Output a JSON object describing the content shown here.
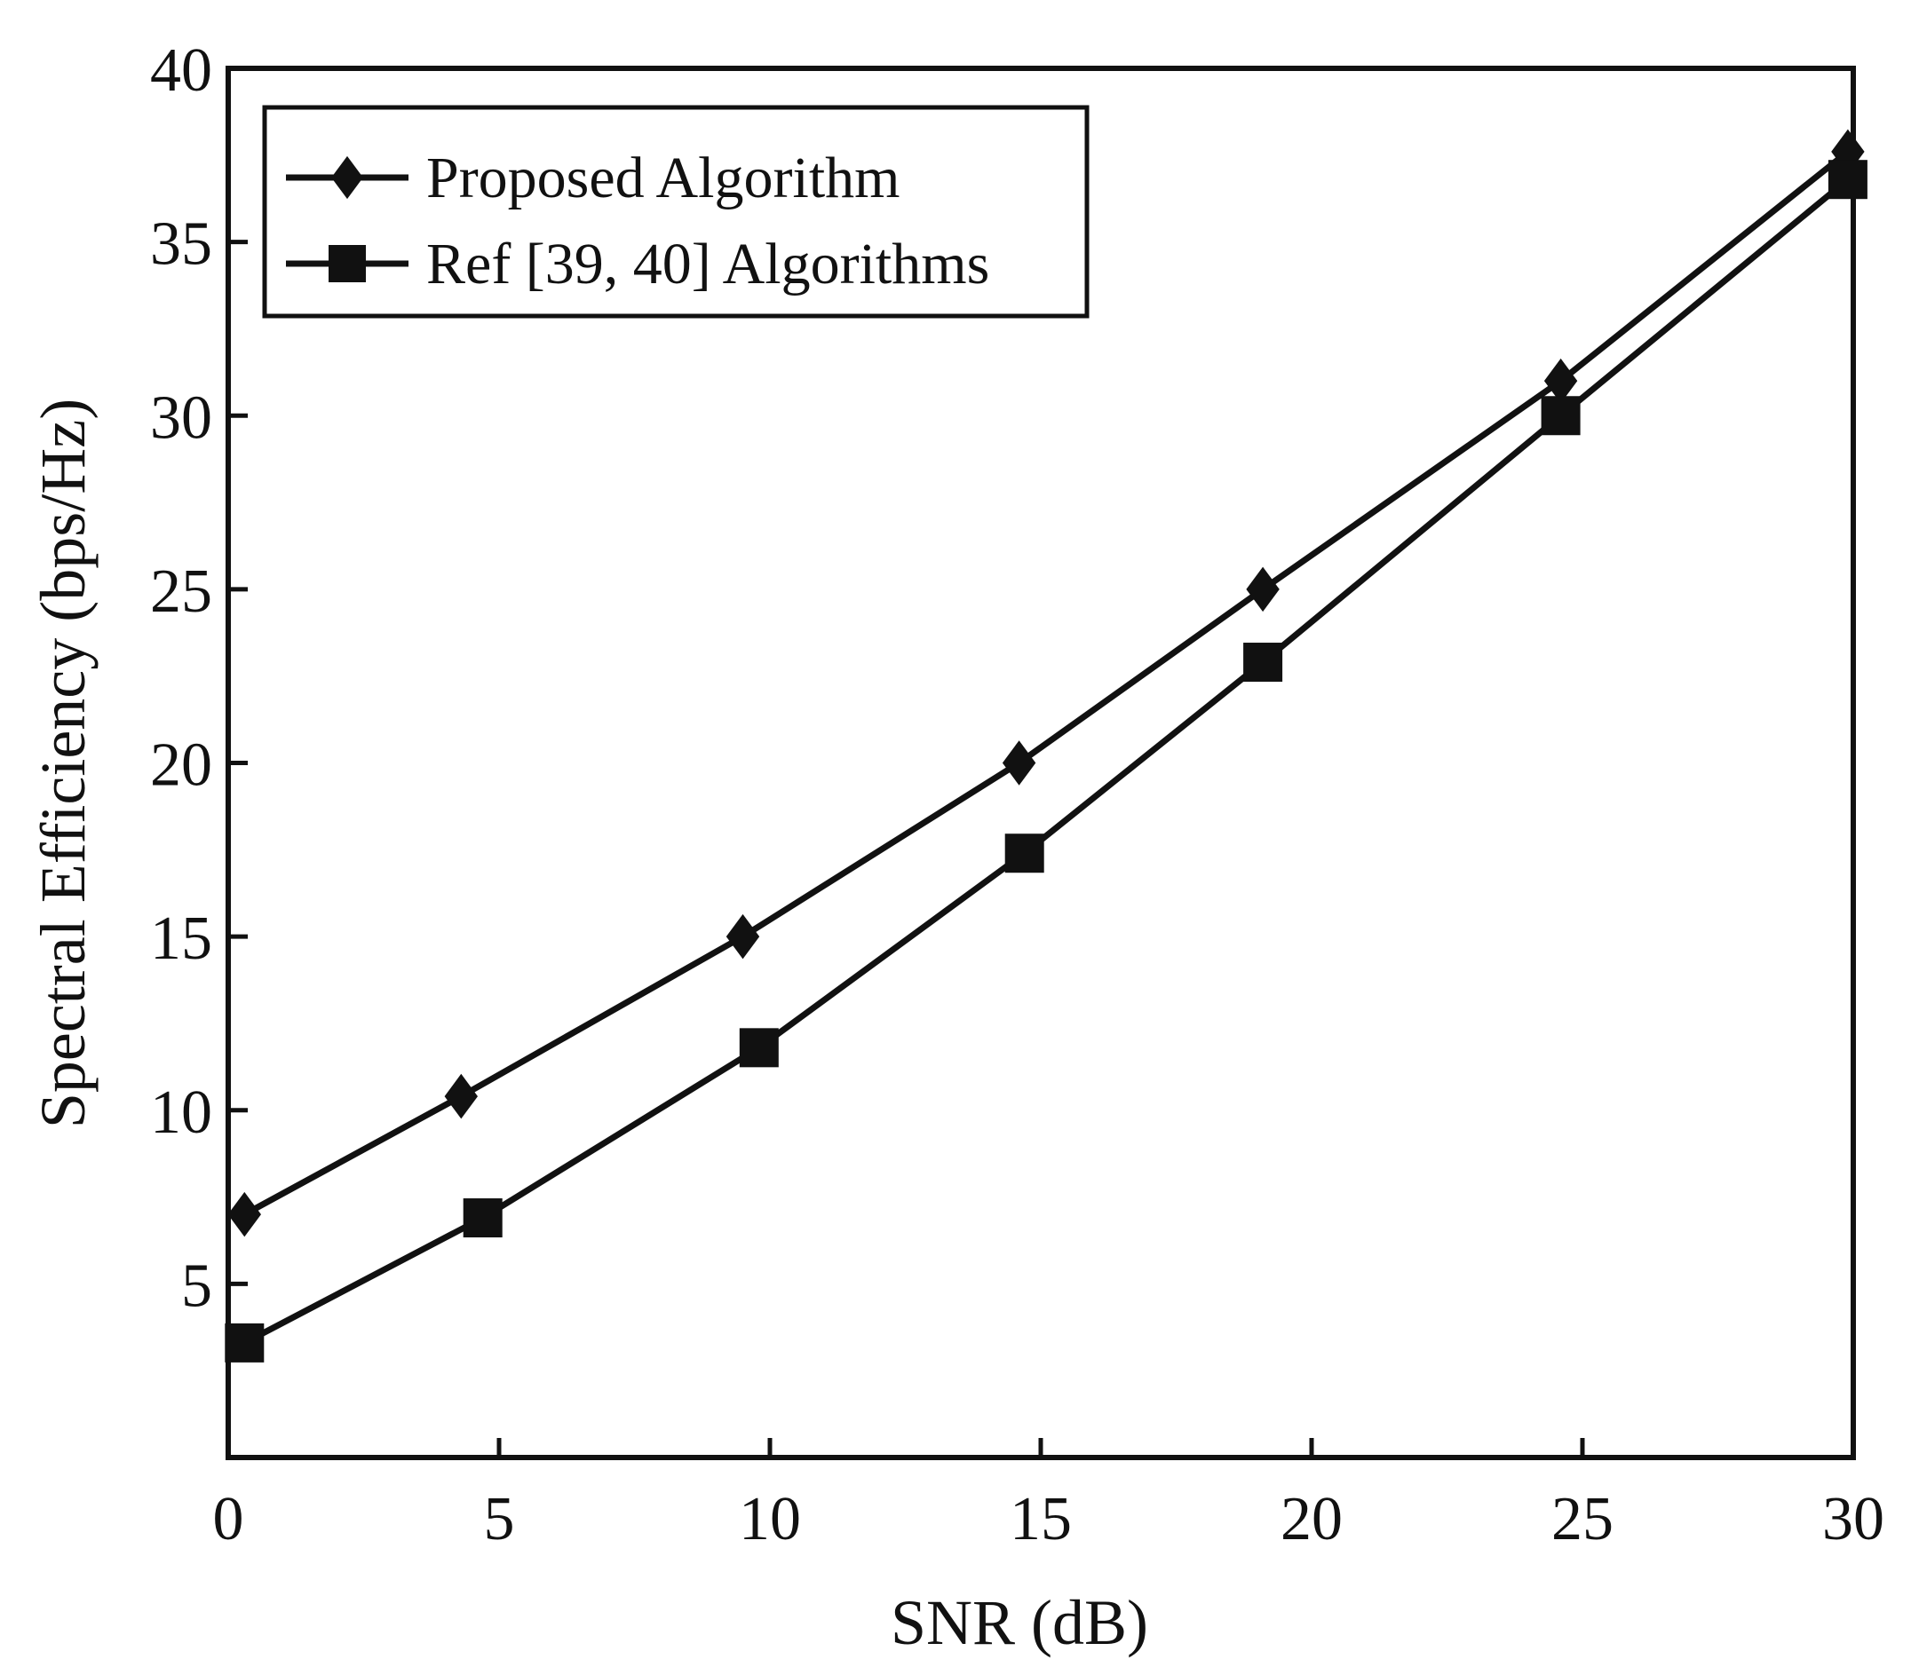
{
  "chart_data": {
    "type": "line",
    "title": "",
    "xlabel": "SNR (dB)",
    "ylabel": "Spectral Efficiency (bps/Hz)",
    "xlim": [
      0,
      30
    ],
    "ylim": [
      0,
      40
    ],
    "xticks": [
      0,
      5,
      10,
      15,
      20,
      25,
      30
    ],
    "yticks": [
      5,
      10,
      15,
      20,
      25,
      30,
      35,
      40
    ],
    "grid": false,
    "legend_position": "top-left",
    "series": [
      {
        "name": "Proposed Algorithm",
        "marker": "diamond",
        "x": [
          0.3,
          4.3,
          9.5,
          14.6,
          19.1,
          24.6,
          29.9
        ],
        "y": [
          7.0,
          10.4,
          15.0,
          20.0,
          25.0,
          31.0,
          37.6
        ]
      },
      {
        "name": "Ref [39, 40] Algorithms",
        "marker": "square",
        "x": [
          0.3,
          4.7,
          9.8,
          14.7,
          19.1,
          24.6,
          29.9
        ],
        "y": [
          3.3,
          6.9,
          11.8,
          17.4,
          22.9,
          30.0,
          36.8
        ]
      }
    ]
  }
}
